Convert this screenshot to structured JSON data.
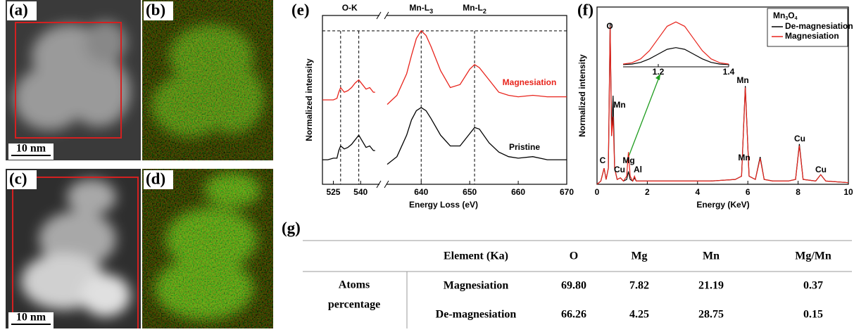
{
  "images": [
    {
      "label": "(a)",
      "scale_bar": "10 nm"
    },
    {
      "label": "(b)"
    },
    {
      "label": "(c)",
      "scale_bar": "10 nm"
    },
    {
      "label": "(d)"
    }
  ],
  "chart_data": [
    {
      "type": "line",
      "label": "(e)",
      "xlabel": "Energy Loss (eV)",
      "ylabel": "Normalized intensity",
      "segments": [
        {
          "xlim": [
            519,
            550
          ],
          "xticks": [
            525,
            540
          ]
        },
        {
          "xlim": [
            633,
            670
          ],
          "xticks": [
            640,
            650,
            660,
            670
          ]
        }
      ],
      "ylim": [
        0,
        1.1
      ],
      "vlines": [
        529,
        539,
        640,
        651
      ],
      "hline": 1.0,
      "edges": [
        {
          "text": "O-K"
        },
        {
          "text": "Mn-L",
          "sub": "3"
        },
        {
          "text": "Mn-L",
          "sub": "2"
        }
      ],
      "series": [
        {
          "name": "Magnesiation",
          "color": "#e8241c",
          "x": [
            519,
            522,
            525,
            527,
            528,
            529,
            531,
            533,
            535,
            537,
            539,
            541,
            543,
            545,
            547,
            548,
            null,
            633,
            635,
            637,
            638,
            639,
            640,
            641,
            642,
            644,
            646,
            648,
            650,
            651,
            652,
            654,
            656,
            658,
            660,
            663,
            666,
            670
          ],
          "values": [
            0.55,
            0.55,
            0.55,
            0.56,
            0.6,
            0.63,
            0.6,
            0.61,
            0.63,
            0.66,
            0.68,
            0.65,
            0.62,
            0.63,
            0.6,
            0.6,
            null,
            0.52,
            0.58,
            0.72,
            0.84,
            0.95,
            1.0,
            0.97,
            0.9,
            0.74,
            0.63,
            0.65,
            0.75,
            0.78,
            0.76,
            0.68,
            0.6,
            0.58,
            0.57,
            0.58,
            0.57,
            0.57
          ]
        },
        {
          "name": "Pristine",
          "color": "#000000",
          "x": [
            519,
            522,
            525,
            527,
            528,
            529,
            531,
            533,
            535,
            537,
            539,
            541,
            543,
            545,
            547,
            548,
            null,
            633,
            635,
            637,
            638,
            639,
            640,
            641,
            642,
            644,
            646,
            648,
            650,
            651,
            652,
            654,
            656,
            658,
            660,
            663,
            666,
            670
          ],
          "values": [
            0.16,
            0.16,
            0.17,
            0.17,
            0.22,
            0.25,
            0.23,
            0.24,
            0.26,
            0.29,
            0.32,
            0.28,
            0.24,
            0.25,
            0.22,
            0.22,
            null,
            0.13,
            0.18,
            0.32,
            0.42,
            0.48,
            0.5,
            0.48,
            0.43,
            0.32,
            0.25,
            0.25,
            0.33,
            0.37,
            0.36,
            0.27,
            0.21,
            0.18,
            0.17,
            0.18,
            0.16,
            0.16
          ]
        }
      ]
    },
    {
      "type": "line",
      "label": "(f)",
      "xlabel": "Energy (KeV)",
      "ylabel": "Normalized intensity",
      "xlim": [
        0,
        10
      ],
      "xticks": [
        0,
        2,
        4,
        6,
        8,
        10
      ],
      "ylim": [
        0,
        1.1
      ],
      "legend_title": [
        "Mn",
        "3",
        "O",
        "4"
      ],
      "legend": "upper right",
      "peaks": [
        "C",
        "O",
        "Mn",
        "Cu",
        "Mg",
        "Al",
        "Mn",
        "Mn",
        "Cu",
        "Cu"
      ],
      "series": [
        {
          "name": "De-magnesiation",
          "color": "#000000",
          "x": [
            0,
            0.15,
            0.28,
            0.36,
            0.45,
            0.52,
            0.58,
            0.64,
            0.7,
            0.8,
            0.93,
            1.05,
            1.18,
            1.25,
            1.32,
            1.42,
            1.49,
            1.56,
            1.8,
            2.5,
            3.5,
            4.5,
            5.5,
            5.75,
            5.9,
            6.05,
            6.3,
            6.49,
            6.65,
            7,
            7.6,
            7.9,
            8.05,
            8.2,
            8.7,
            8.9,
            9.1,
            10
          ],
          "values": [
            0,
            0.02,
            0.1,
            0.03,
            0.1,
            1.0,
            0.3,
            0.55,
            0.1,
            0.03,
            0.04,
            0.02,
            0.03,
            0.08,
            0.03,
            0.02,
            0.04,
            0.02,
            0.02,
            0.02,
            0.02,
            0.02,
            0.03,
            0.05,
            0.61,
            0.05,
            0.03,
            0.17,
            0.03,
            0.02,
            0.02,
            0.03,
            0.25,
            0.03,
            0.02,
            0.06,
            0.02,
            0.01
          ]
        },
        {
          "name": "Magnesiation",
          "color": "#e8241c",
          "x": [
            0,
            0.15,
            0.28,
            0.36,
            0.45,
            0.52,
            0.58,
            0.64,
            0.7,
            0.8,
            0.93,
            1.05,
            1.18,
            1.25,
            1.32,
            1.42,
            1.49,
            1.56,
            1.8,
            2.5,
            3.5,
            4.5,
            5.5,
            5.75,
            5.9,
            6.05,
            6.3,
            6.49,
            6.65,
            7,
            7.6,
            7.9,
            8.05,
            8.2,
            8.7,
            8.9,
            9.1,
            10
          ],
          "values": [
            0,
            0.02,
            0.1,
            0.03,
            0.1,
            0.98,
            0.3,
            0.42,
            0.1,
            0.03,
            0.04,
            0.02,
            0.05,
            0.2,
            0.05,
            0.02,
            0.05,
            0.02,
            0.02,
            0.02,
            0.02,
            0.02,
            0.03,
            0.05,
            0.6,
            0.05,
            0.03,
            0.16,
            0.03,
            0.02,
            0.02,
            0.03,
            0.24,
            0.03,
            0.02,
            0.06,
            0.02,
            0.01
          ]
        }
      ]
    },
    {
      "type": "line",
      "xlim": [
        1.1,
        1.4
      ],
      "xticks": [
        1.2,
        1.4
      ],
      "ylim": [
        0,
        1.1
      ],
      "series": [
        {
          "color": "#000000",
          "x": [
            1.1,
            1.125,
            1.15,
            1.175,
            1.2,
            1.225,
            1.25,
            1.275,
            1.3,
            1.325,
            1.35,
            1.375,
            1.4
          ],
          "values": [
            0.02,
            0.03,
            0.07,
            0.15,
            0.26,
            0.37,
            0.41,
            0.37,
            0.26,
            0.15,
            0.07,
            0.03,
            0.02
          ]
        },
        {
          "color": "#e8241c",
          "x": [
            1.1,
            1.125,
            1.15,
            1.175,
            1.2,
            1.225,
            1.25,
            1.275,
            1.3,
            1.325,
            1.35,
            1.375,
            1.4
          ],
          "values": [
            0.03,
            0.06,
            0.15,
            0.34,
            0.62,
            0.9,
            1.0,
            0.9,
            0.62,
            0.34,
            0.15,
            0.06,
            0.03
          ]
        }
      ]
    }
  ],
  "table": {
    "label": "(g)",
    "header": [
      "Element (Ka)",
      "O",
      "Mg",
      "Mn",
      "Mg/Mn"
    ],
    "row_label": [
      "Atoms",
      "percentage"
    ],
    "rows": [
      [
        "Magnesiation",
        "69.80",
        "7.82",
        "21.19",
        "0.37"
      ],
      [
        "De-magnesiation",
        "66.26",
        "4.25",
        "28.75",
        "0.15"
      ]
    ]
  }
}
